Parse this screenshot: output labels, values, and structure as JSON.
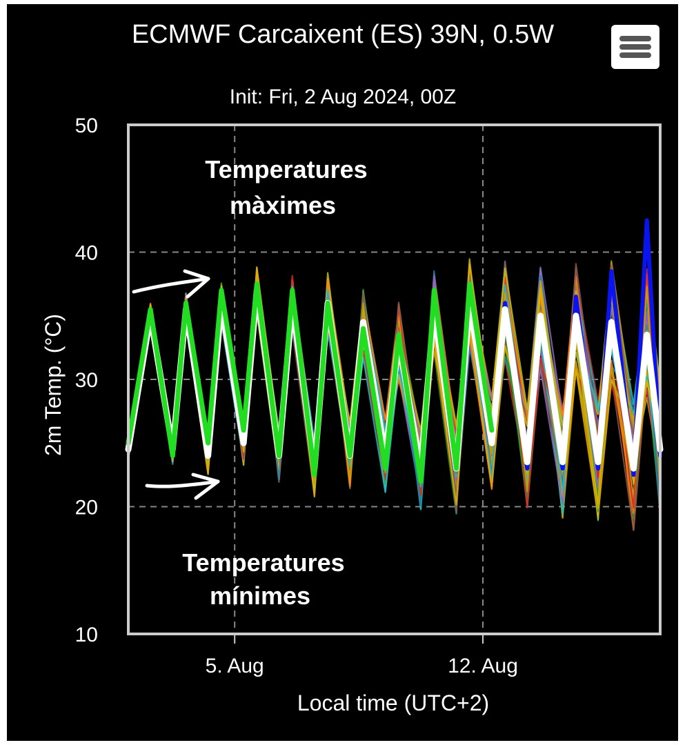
{
  "header": {
    "title": "ECMWF Carcaixent (ES) 39N, 0.5W",
    "subtitle": "Init: Fri, 2 Aug 2024, 00Z"
  },
  "menu": {
    "icon": "hamburger-menu-icon"
  },
  "annotations": {
    "max_label_line1": "Temperatures",
    "max_label_line2": "màximes",
    "min_label_line1": "Temperatures",
    "min_label_line2": "mínimes"
  },
  "colors": {
    "background": "#000000",
    "mean": "#ffffff",
    "control": "#22dd22",
    "hres": "#0a14ee",
    "grid": "#888888",
    "frame": "#cccccc"
  },
  "chart_data": {
    "type": "line",
    "title": "ECMWF Carcaixent (ES) 39N, 0.5W",
    "subtitle": "Init: Fri, 2 Aug 2024, 00Z",
    "xlabel": "Local time (UTC+2)",
    "ylabel": "2m Temp. (°C)",
    "ylim": [
      10,
      50
    ],
    "yticks": [
      "10",
      "20",
      "30",
      "40",
      "50"
    ],
    "xlim": [
      "2024-08-02",
      "2024-08-17"
    ],
    "xticks": [
      {
        "date": "2024-08-05",
        "label": "5. Aug"
      },
      {
        "date": "2024-08-12",
        "label": "12. Aug"
      }
    ],
    "grid": true,
    "series": [
      {
        "role": "ensemble-mean",
        "color": "#ffffff",
        "x": [
          "2024-08-02 00:00",
          "2024-08-02 15:00",
          "2024-08-03 06:00",
          "2024-08-03 15:00",
          "2024-08-04 06:00",
          "2024-08-04 15:00",
          "2024-08-05 06:00",
          "2024-08-05 15:00",
          "2024-08-06 06:00",
          "2024-08-06 15:00",
          "2024-08-07 06:00",
          "2024-08-07 15:00",
          "2024-08-08 06:00",
          "2024-08-08 15:00",
          "2024-08-09 06:00",
          "2024-08-09 15:00",
          "2024-08-10 06:00",
          "2024-08-10 15:00",
          "2024-08-11 06:00",
          "2024-08-11 15:00",
          "2024-08-12 06:00",
          "2024-08-12 15:00",
          "2024-08-13 06:00",
          "2024-08-13 15:00",
          "2024-08-14 06:00",
          "2024-08-14 15:00",
          "2024-08-15 06:00",
          "2024-08-15 15:00",
          "2024-08-16 06:00",
          "2024-08-16 15:00",
          "2024-08-17 00:00"
        ],
        "y": [
          24.5,
          35,
          24.5,
          35.5,
          24,
          36,
          25,
          37,
          24,
          36,
          23,
          36,
          24,
          34.5,
          24,
          33,
          23,
          35.5,
          23,
          36,
          25,
          35.5,
          23.5,
          35,
          23.5,
          35,
          23.5,
          34.5,
          23,
          33.5,
          24.5
        ]
      },
      {
        "role": "control-run",
        "color": "#22dd22",
        "x": [
          "2024-08-02 00:00",
          "2024-08-02 15:00",
          "2024-08-03 06:00",
          "2024-08-03 15:00",
          "2024-08-04 06:00",
          "2024-08-04 15:00",
          "2024-08-05 06:00",
          "2024-08-05 15:00",
          "2024-08-06 06:00",
          "2024-08-06 15:00",
          "2024-08-07 06:00",
          "2024-08-07 15:00",
          "2024-08-08 06:00",
          "2024-08-08 15:00",
          "2024-08-09 06:00",
          "2024-08-09 15:00",
          "2024-08-10 06:00",
          "2024-08-10 15:00",
          "2024-08-11 06:00",
          "2024-08-11 15:00",
          "2024-08-12 06:00"
        ],
        "y": [
          25,
          35.5,
          24,
          36,
          25,
          37,
          26,
          37.5,
          24,
          37,
          22.5,
          36,
          24,
          34,
          23,
          33.5,
          22,
          37,
          23,
          37.5,
          26
        ]
      },
      {
        "role": "hres",
        "color": "#0a14ee",
        "x": [
          "2024-08-12 06:00",
          "2024-08-12 15:00",
          "2024-08-13 06:00",
          "2024-08-13 15:00",
          "2024-08-14 06:00",
          "2024-08-14 15:00",
          "2024-08-15 06:00",
          "2024-08-15 15:00",
          "2024-08-16 06:00",
          "2024-08-16 15:00",
          "2024-08-17 00:00"
        ],
        "y": [
          25,
          36,
          23,
          35,
          23,
          36.5,
          23,
          38.5,
          22.5,
          42.5,
          24
        ]
      }
    ],
    "ensemble_members": 50,
    "ensemble_palette": [
      "#1f77b4",
      "#ff7f0e",
      "#2ca02c",
      "#d62728",
      "#9467bd",
      "#8c564b",
      "#bcbd22",
      "#17becf",
      "#c8a000",
      "#e6ab02"
    ]
  }
}
